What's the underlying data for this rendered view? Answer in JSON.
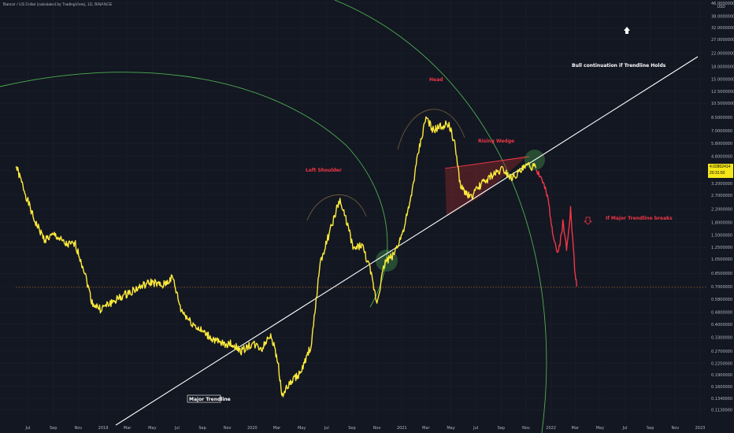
{
  "header": {
    "symbol_title": "Bancor / US Dollar (calculated by TradingView), 1D, BINANCE",
    "currency": "USD"
  },
  "price_tag": {
    "price": "4.02802414",
    "countdown": "20:31:50"
  },
  "annotations": {
    "head": "Head",
    "left_shoulder": "Left Shoulder",
    "rising_wedge": "Rising Wedge",
    "bull_continuation": "Bull continuation if Trendline Holds",
    "if_breaks": "If Major Trendline breaks",
    "major_trendline": "Major Trendline"
  },
  "colors": {
    "background": "#131722",
    "price_line": "#ffeb3b",
    "projection": "#f23645",
    "trendline": "#ffffff",
    "arcs": "#4caf50",
    "wedge_fill": "#8b2a2a",
    "grid": "#1e222d",
    "label_red": "#f23645"
  },
  "chart_data": {
    "type": "line",
    "title": "Bancor / US Dollar (calculated by TradingView), 1D, BINANCE",
    "y_scale": "log",
    "ylim": [
      0.11,
      46.0
    ],
    "y_ticks": [
      "46.0000000",
      "38.0000000",
      "32.0000000",
      "27.0000000",
      "22.0000000",
      "18.0000000",
      "15.0000000",
      "12.5000000",
      "10.5000000",
      "8.5000000",
      "7.0000000",
      "5.8000000",
      "4.8000000",
      "3.9000000",
      "3.2000000",
      "2.7000000",
      "2.2000000",
      "1.8000000",
      "1.5000000",
      "1.2500000",
      "1.0500000",
      "0.8500000",
      "0.7000000",
      "0.5800000",
      "0.4800000",
      "0.4000000",
      "0.3300000",
      "0.2700000",
      "0.2250000",
      "0.1900000",
      "0.1600000",
      "0.1340000",
      "0.1130000"
    ],
    "x_ticks": [
      "Jul",
      "Sep",
      "Nov",
      "2019",
      "Mar",
      "May",
      "Jul",
      "Sep",
      "Nov",
      "2020",
      "Mar",
      "May",
      "Jul",
      "Sep",
      "Nov",
      "2021",
      "Mar",
      "May",
      "Jul",
      "Sep",
      "Nov",
      "2022",
      "Mar",
      "May",
      "Jul",
      "Sep",
      "Nov",
      "2023"
    ],
    "series": [
      {
        "name": "",
        "x": [
          "2018-06-01",
          "2018-06-20",
          "2018-07-15",
          "2018-08-10",
          "2018-09-05",
          "2018-10-01",
          "2018-10-25",
          "2018-11-15",
          "2018-12-05",
          "2018-12-25",
          "2019-01-20",
          "2019-02-15",
          "2019-03-10",
          "2019-04-05",
          "2019-05-01",
          "2019-05-25",
          "2019-06-20",
          "2019-07-10",
          "2019-08-01",
          "2019-08-25",
          "2019-09-20",
          "2019-10-15",
          "2019-11-10",
          "2019-12-05",
          "2020-01-01",
          "2020-01-25",
          "2020-02-15",
          "2020-03-05",
          "2020-03-13",
          "2020-04-05",
          "2020-05-01",
          "2020-05-25",
          "2020-06-15",
          "2020-07-10",
          "2020-08-01",
          "2020-08-20",
          "2020-09-05",
          "2020-09-25",
          "2020-10-15",
          "2020-11-01",
          "2020-11-20",
          "2020-12-10",
          "2021-01-01",
          "2021-01-20",
          "2021-02-10",
          "2021-03-01",
          "2021-03-20",
          "2021-04-10",
          "2021-04-25",
          "2021-05-12",
          "2021-05-25",
          "2021-06-20",
          "2021-07-15",
          "2021-08-10",
          "2021-09-05",
          "2021-09-25",
          "2021-10-15",
          "2021-11-05",
          "2021-11-25"
        ],
        "values": [
          4.2,
          3.0,
          1.9,
          1.4,
          1.5,
          1.3,
          1.3,
          0.9,
          0.55,
          0.5,
          0.55,
          0.6,
          0.65,
          0.7,
          0.75,
          0.7,
          0.8,
          0.5,
          0.42,
          0.37,
          0.33,
          0.3,
          0.3,
          0.27,
          0.3,
          0.28,
          0.35,
          0.22,
          0.14,
          0.17,
          0.2,
          0.3,
          1.0,
          1.6,
          2.5,
          1.8,
          1.2,
          1.3,
          0.9,
          0.55,
          1.0,
          1.1,
          1.5,
          2.3,
          5.0,
          8.5,
          7.0,
          7.5,
          7.8,
          5.5,
          3.0,
          2.6,
          3.2,
          3.6,
          4.0,
          3.5,
          3.8,
          4.2,
          4.03
        ]
      },
      {
        "name": "",
        "x": [
          "2021-11-25",
          "2021-12-10",
          "2021-12-25",
          "2022-01-05",
          "2022-01-18",
          "2022-01-30",
          "2022-02-08",
          "2022-02-18",
          "2022-02-28",
          "2022-03-05"
        ],
        "values": [
          4.03,
          3.4,
          2.5,
          1.6,
          1.1,
          1.8,
          1.25,
          2.2,
          0.9,
          0.7
        ]
      }
    ],
    "horizontal_reference": 0.7
  }
}
